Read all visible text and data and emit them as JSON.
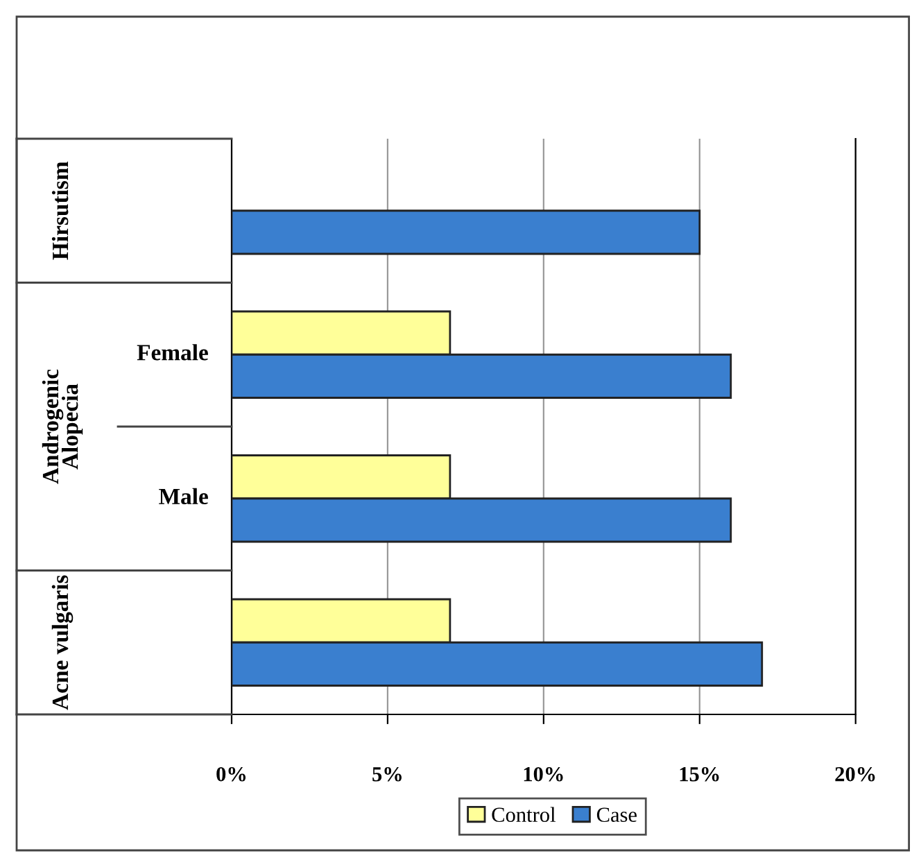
{
  "chart_data": {
    "type": "bar",
    "orientation": "horizontal",
    "categories": [
      "Hirsutism",
      "Female",
      "Male",
      "Acne vulgaris"
    ],
    "series": [
      {
        "name": "Control",
        "color": "#ffff99",
        "values": [
          null,
          7,
          7,
          7
        ]
      },
      {
        "name": "Case",
        "color": "#3a7fcf",
        "values": [
          15,
          16,
          16,
          17
        ]
      }
    ],
    "xlim": [
      0,
      20
    ],
    "xticks": [
      {
        "value": 0,
        "label": "0%"
      },
      {
        "value": 5,
        "label": "5%"
      },
      {
        "value": 10,
        "label": "10%"
      },
      {
        "value": 15,
        "label": "15%"
      },
      {
        "value": 20,
        "label": "20%"
      }
    ],
    "grid": "x",
    "legend": "bottom",
    "annotations": [
      "Androgenic Alopecia"
    ]
  }
}
